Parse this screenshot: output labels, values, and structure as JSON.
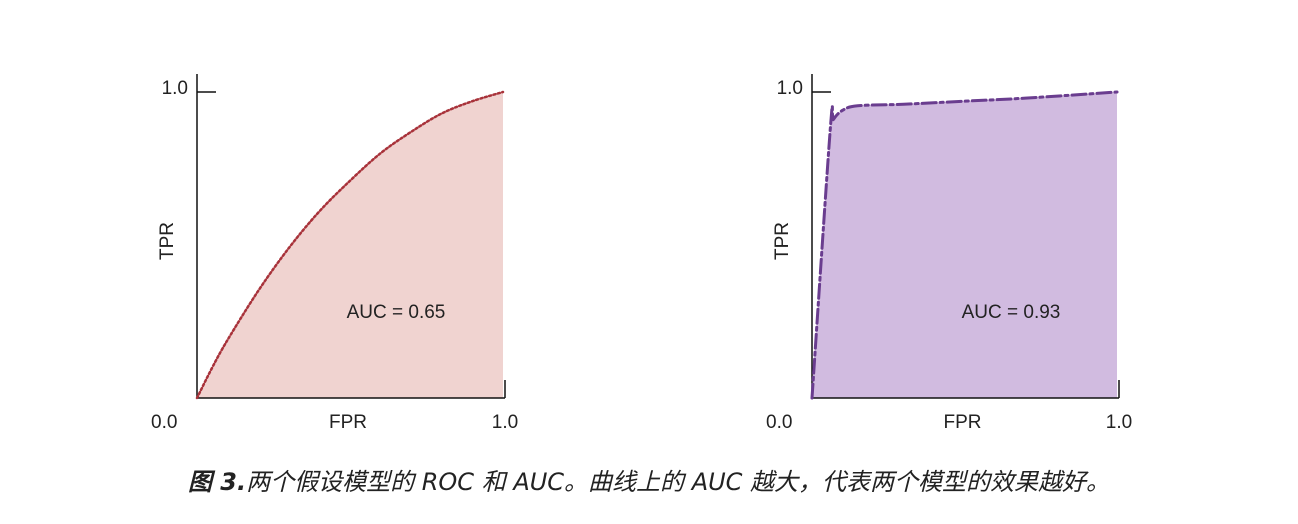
{
  "chart_data": [
    {
      "type": "area",
      "xlabel": "FPR",
      "ylabel": "TPR",
      "xlim": [
        0.0,
        1.0
      ],
      "ylim": [
        0.0,
        1.0
      ],
      "x_ticks": [
        "0.0",
        "1.0"
      ],
      "y_ticks": [
        "1.0"
      ],
      "annotation": "AUC = 0.65",
      "line_style": "dotted",
      "line_color": "#a8323a",
      "fill_color": "#f0d3d0",
      "x": [
        0.0,
        0.05,
        0.1,
        0.2,
        0.3,
        0.4,
        0.5,
        0.6,
        0.7,
        0.8,
        0.9,
        1.0
      ],
      "y": [
        0.0,
        0.1,
        0.19,
        0.35,
        0.49,
        0.61,
        0.71,
        0.8,
        0.87,
        0.93,
        0.97,
        1.0
      ]
    },
    {
      "type": "area",
      "xlabel": "FPR",
      "ylabel": "TPR",
      "xlim": [
        0.0,
        1.0
      ],
      "ylim": [
        0.0,
        1.0
      ],
      "x_ticks": [
        "0.0",
        "1.0"
      ],
      "y_ticks": [
        "1.0"
      ],
      "annotation": "AUC = 0.93",
      "line_style": "dashdot",
      "line_color": "#6a3d8f",
      "fill_color": "#d1bbe0",
      "x": [
        0.0,
        0.06,
        0.07,
        0.1,
        0.15,
        0.3,
        0.5,
        0.7,
        1.0
      ],
      "y": [
        0.0,
        0.88,
        0.91,
        0.94,
        0.955,
        0.96,
        0.97,
        0.98,
        1.0
      ]
    }
  ],
  "caption": {
    "label": "图 3.",
    "text": "两个假设模型的 ROC 和 AUC。曲线上的 AUC 越大，代表两个模型的效果越好。"
  }
}
